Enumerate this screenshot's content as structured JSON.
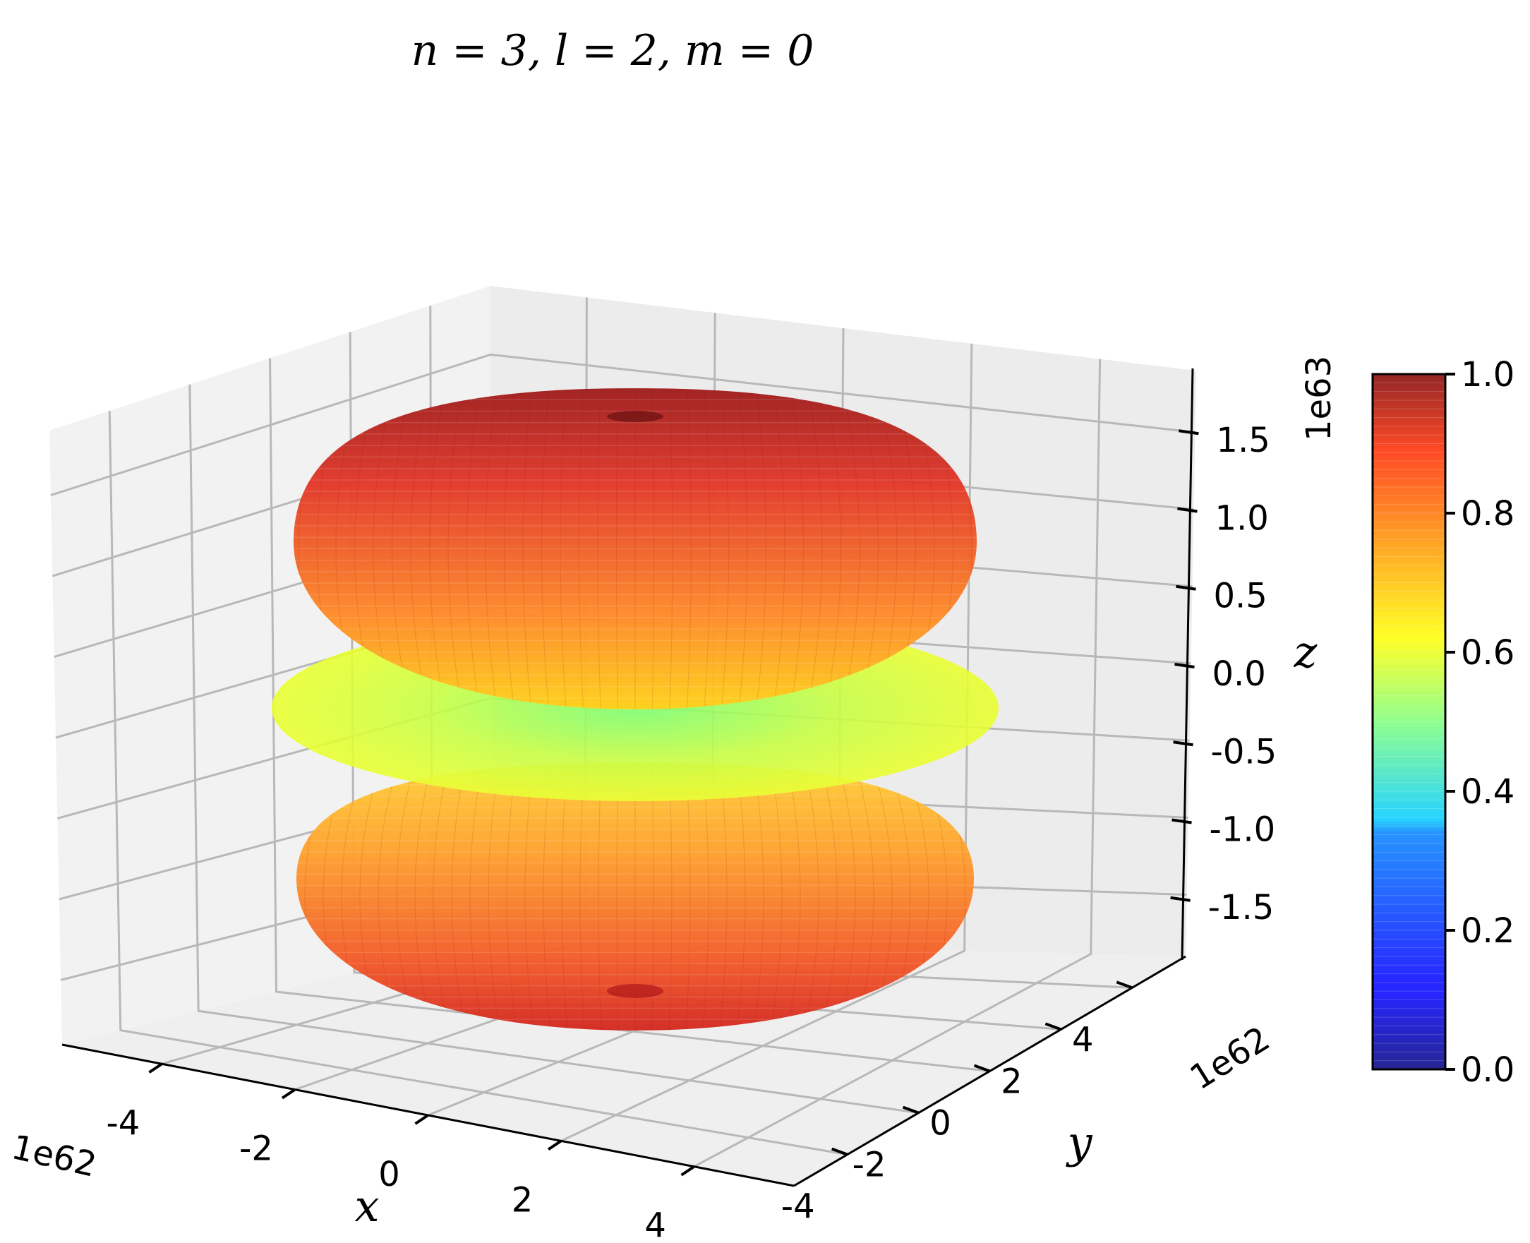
{
  "chart_data": {
    "type": "surface3d",
    "title": "n = 3, l = 2, m = 0",
    "title_parts": {
      "n": "3",
      "l": "2",
      "m": "0"
    },
    "xlabel": "x",
    "ylabel": "y",
    "zlabel": "z",
    "x_ticks": [
      "-4",
      "-2",
      "0",
      "2",
      "4"
    ],
    "y_ticks": [
      "-4",
      "-2",
      "0",
      "2",
      "4"
    ],
    "z_ticks": [
      "-1.5",
      "-1.0",
      "-0.5",
      "0.0",
      "0.5",
      "1.0",
      "1.5"
    ],
    "x_offset_label": "1e62",
    "y_offset_label": "1e62",
    "z_offset_label": "1e63",
    "xlim": [
      -5.5,
      5.5
    ],
    "ylim": [
      -5.5,
      5.5
    ],
    "zlim": [
      -1.9,
      1.9
    ],
    "surface": {
      "description_values": {
        "upper_lobe_z_range": [
          0.25,
          1.9
        ],
        "lower_lobe_z_range": [
          -1.9,
          -0.25
        ],
        "torus_z": 0.0,
        "radius_max_scaled": 5.0
      }
    },
    "colorbar": {
      "ticks": [
        "0.0",
        "0.2",
        "0.4",
        "0.6",
        "0.8",
        "1.0"
      ],
      "range": [
        0.0,
        1.0
      ],
      "colormap": "jet"
    },
    "grid": true,
    "colors": {
      "pane": "#f2f2f2",
      "grid": "#b8b8b8",
      "lobe_top": "#c72a2a",
      "lobe_mid": "#ff8a2a",
      "disk_outer": "#e6ff3a",
      "disk_center": "#86ff6e"
    }
  }
}
